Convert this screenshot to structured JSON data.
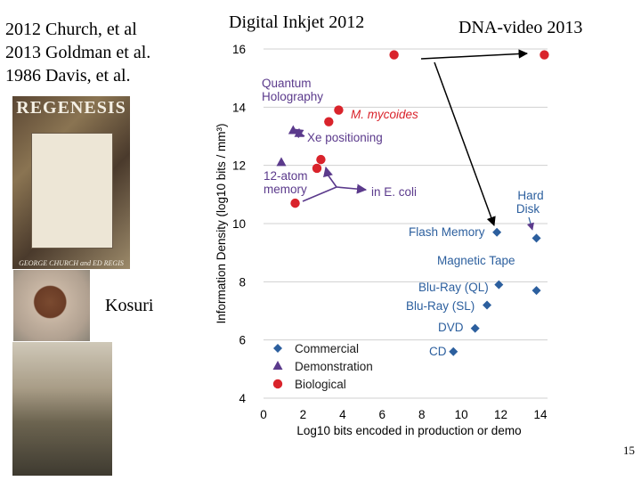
{
  "slide": {
    "references": [
      "2012 Church, et al",
      "2013 Goldman et al.",
      "1986 Davis, et al."
    ],
    "book": {
      "title": "REGENESIS",
      "author": "GEORGE CHURCH and ED REGIS"
    },
    "person_label": "Kosuri",
    "annotations": {
      "left": "Digital Inkjet 2012",
      "right": "DNA-video 2013"
    },
    "page_number": "15"
  },
  "colors": {
    "commercial": "#2c5f9e",
    "demonstration": "#5b3a8c",
    "biological": "#d9232b",
    "callout": "#5b3a8c",
    "grid": "#d0d0d0"
  },
  "chart_data": {
    "type": "scatter",
    "xlabel": "Log10 bits encoded in production or demo",
    "ylabel": "Information Density (log10 bits / mm³)",
    "xlim": [
      0,
      14
    ],
    "ylim": [
      4,
      16
    ],
    "x_ticks": [
      0,
      2,
      4,
      6,
      8,
      10,
      12,
      14
    ],
    "y_ticks": [
      4,
      6,
      8,
      10,
      12,
      14,
      16
    ],
    "grid": "horizontal",
    "legend": {
      "position": "bottom-left",
      "entries": [
        "Commercial",
        "Demonstration",
        "Biological"
      ]
    },
    "series": [
      {
        "name": "Commercial",
        "marker": "diamond",
        "points": [
          {
            "label": "Hard Disk",
            "x": 13.8,
            "y": 9.5
          },
          {
            "label": "Flash Memory",
            "x": 11.8,
            "y": 9.7
          },
          {
            "label": "Magnetic Tape",
            "x": 13.8,
            "y": 7.7
          },
          {
            "label": "Blu-Ray (QL)",
            "x": 11.9,
            "y": 7.9
          },
          {
            "label": "Blu-Ray (SL)",
            "x": 11.3,
            "y": 7.2
          },
          {
            "label": "DVD",
            "x": 10.7,
            "y": 6.4
          },
          {
            "label": "CD",
            "x": 9.6,
            "y": 5.6
          }
        ]
      },
      {
        "name": "Demonstration",
        "marker": "triangle",
        "points": [
          {
            "label": "Quantum Holography",
            "x": 1.5,
            "y": 13.2
          },
          {
            "label": "Xe positioning",
            "x": 1.8,
            "y": 13.1
          },
          {
            "label": "12-atom memory",
            "x": 0.9,
            "y": 12.1
          }
        ]
      },
      {
        "name": "Biological",
        "marker": "circle",
        "points": [
          {
            "label": "Digital Inkjet 2012",
            "x": 6.6,
            "y": 15.8
          },
          {
            "label": "DNA-video 2013",
            "x": 14.2,
            "y": 15.8
          },
          {
            "label": "M. mycoides",
            "x": 3.8,
            "y": 13.9
          },
          {
            "label": "",
            "x": 3.3,
            "y": 13.5
          },
          {
            "label": "",
            "x": 2.9,
            "y": 12.2
          },
          {
            "label": "",
            "x": 2.7,
            "y": 11.9
          },
          {
            "label": "",
            "x": 1.6,
            "y": 10.7
          }
        ]
      }
    ],
    "labels": {
      "quantum_holography": [
        "Quantum",
        "Holography"
      ],
      "m_mycoides": "M. mycoides",
      "xe_positioning": "Xe positioning",
      "atom_memory": [
        "12-atom",
        "memory"
      ],
      "e_coli": "in E. coli",
      "hard_disk": [
        "Hard",
        "Disk"
      ],
      "flash_memory": "Flash Memory",
      "magnetic_tape": "Magnetic Tape",
      "blu_ray_ql": "Blu-Ray (QL)",
      "blu_ray_sl": "Blu-Ray (SL)",
      "dvd": "DVD",
      "cd": "CD"
    }
  }
}
